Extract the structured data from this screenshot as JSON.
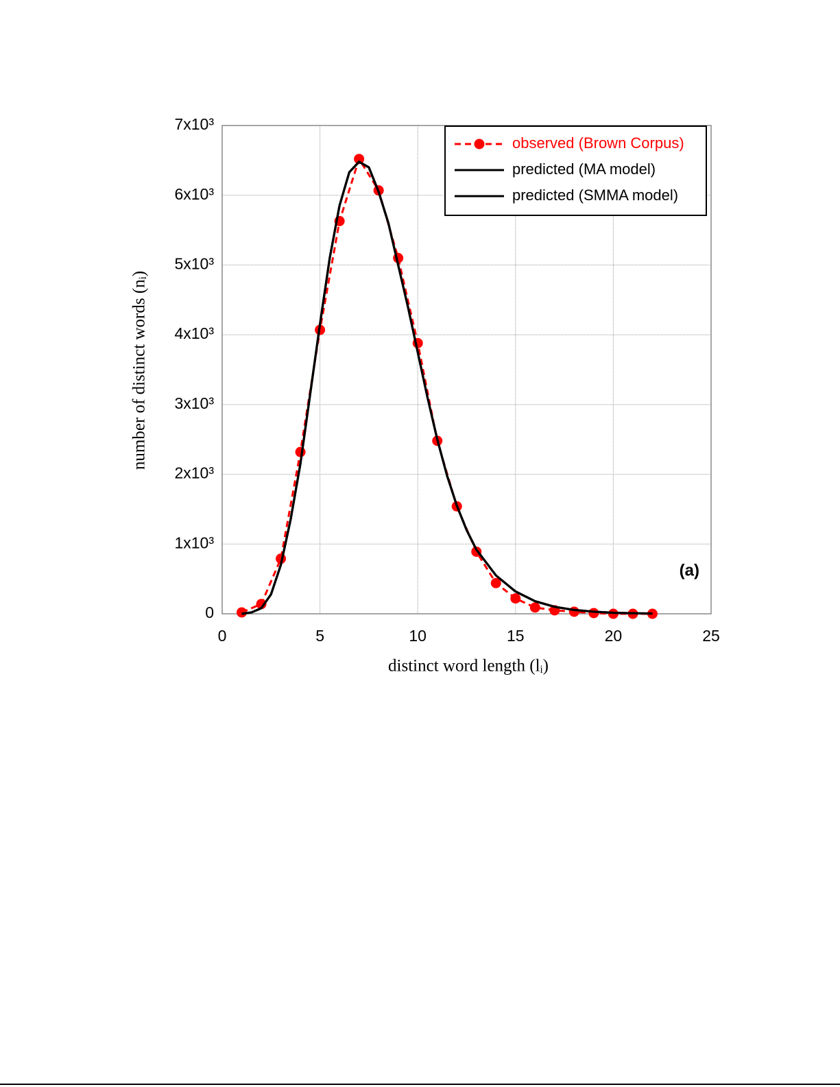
{
  "chart_data": {
    "type": "line",
    "xlabel": "distinct word length (lᵢ)",
    "ylabel": "number of distinct words (nᵢ)",
    "annotation": "(a)",
    "xlim": [
      0,
      25
    ],
    "xticks": [
      0,
      5,
      10,
      15,
      20,
      25
    ],
    "ylim": [
      0,
      7000
    ],
    "yticks": [
      0,
      {
        "value": 1000,
        "label": "1x10³"
      },
      {
        "value": 2000,
        "label": "2x10³"
      },
      {
        "value": 3000,
        "label": "3x10³"
      },
      {
        "value": 4000,
        "label": "4x10³"
      },
      {
        "value": 5000,
        "label": "5x10³"
      },
      {
        "value": 6000,
        "label": "6x10³"
      },
      {
        "value": 7000,
        "label": "7x10³"
      }
    ],
    "grid": true,
    "legend": "upper right",
    "series": [
      {
        "name": "observed (Brown Corpus)",
        "color": "#ff0000",
        "dashed": true,
        "markers": true,
        "x": [
          1,
          2,
          3,
          4,
          5,
          6,
          7,
          8,
          9,
          10,
          11,
          12,
          13,
          14,
          15,
          16,
          17,
          18,
          19,
          20,
          21,
          22
        ],
        "values": [
          20,
          140,
          790,
          2320,
          4070,
          5630,
          6520,
          6070,
          5100,
          3880,
          2480,
          1540,
          890,
          440,
          220,
          90,
          50,
          30,
          10,
          0,
          0,
          0
        ]
      },
      {
        "name": "predicted (MA model)",
        "color": "#000000",
        "dashed": false,
        "markers": false,
        "x": [
          1,
          1.5,
          2,
          2.5,
          3,
          3.5,
          4,
          4.5,
          5,
          5.5,
          6,
          6.5,
          7,
          7.5,
          8,
          8.5,
          9,
          9.5,
          10,
          10.5,
          11,
          11.5,
          12,
          12.5,
          13,
          14,
          15,
          16,
          17,
          18,
          19,
          20,
          21,
          22
        ],
        "values": [
          0,
          20,
          80,
          280,
          700,
          1350,
          2150,
          3150,
          4150,
          5100,
          5850,
          6330,
          6480,
          6400,
          6050,
          5600,
          5000,
          4400,
          3750,
          3100,
          2500,
          1980,
          1550,
          1200,
          920,
          550,
          320,
          180,
          100,
          55,
          30,
          15,
          8,
          4
        ]
      },
      {
        "name": "predicted (SMMA model)",
        "color": "#000000",
        "dashed": false,
        "markers": false,
        "x": [
          1,
          1.5,
          2,
          2.5,
          3,
          3.5,
          4,
          4.5,
          5,
          5.5,
          6,
          6.5,
          7,
          7.5,
          8,
          8.5,
          9,
          9.5,
          10,
          10.5,
          11,
          11.5,
          12,
          12.5,
          13,
          14,
          15,
          16,
          17,
          18,
          19,
          20,
          21,
          22
        ],
        "values": [
          0,
          20,
          80,
          280,
          700,
          1350,
          2150,
          3150,
          4150,
          5100,
          5850,
          6330,
          6480,
          6400,
          6050,
          5600,
          5000,
          4400,
          3750,
          3100,
          2500,
          1980,
          1550,
          1200,
          920,
          550,
          320,
          180,
          100,
          55,
          30,
          15,
          8,
          4
        ]
      }
    ]
  }
}
